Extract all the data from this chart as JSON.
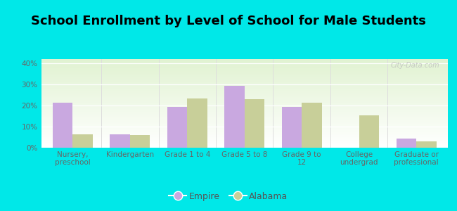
{
  "title": "School Enrollment by Level of School for Male Students",
  "categories": [
    "Nursery,\npreschool",
    "Kindergarten",
    "Grade 1 to 4",
    "Grade 5 to 8",
    "Grade 9 to\n12",
    "College\nundergrad",
    "Graduate or\nprofessional"
  ],
  "empire_values": [
    21.5,
    6.5,
    19.5,
    29.5,
    19.5,
    0,
    4.5
  ],
  "alabama_values": [
    6.5,
    6.0,
    23.5,
    23.0,
    21.5,
    15.5,
    3.0
  ],
  "empire_color": "#c9a8e0",
  "alabama_color": "#c8cf99",
  "ylim": [
    0,
    42
  ],
  "yticks": [
    0,
    10,
    20,
    30,
    40
  ],
  "ytick_labels": [
    "0%",
    "10%",
    "20%",
    "30%",
    "40%"
  ],
  "background_color": "#00e8e8",
  "bar_width": 0.35,
  "legend_labels": [
    "Empire",
    "Alabama"
  ],
  "watermark": "City-Data.com",
  "title_fontsize": 13,
  "tick_fontsize": 7.5,
  "legend_fontsize": 9
}
